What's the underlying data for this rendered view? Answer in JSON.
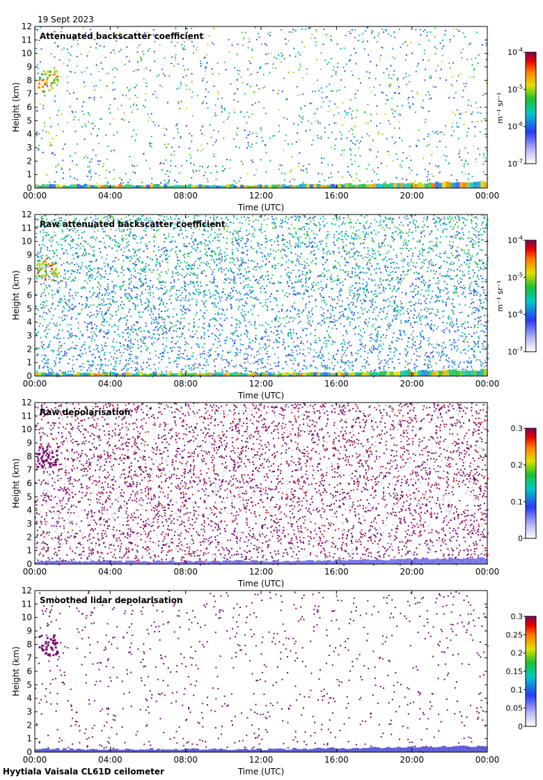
{
  "header": {
    "date": "19 Sept 2023"
  },
  "footer": {
    "site": "Hyytiala Vaisala CL61D ceilometer"
  },
  "chart_data": [
    {
      "type": "heatmap",
      "title": "Attenuated backscatter coefficient",
      "xlabel": "Time (UTC)",
      "ylabel": "Height (km)",
      "x_ticks": [
        "00:00",
        "04:00",
        "08:00",
        "12:00",
        "16:00",
        "20:00",
        "00:00"
      ],
      "y_ticks": [
        "0",
        "1",
        "2",
        "3",
        "4",
        "5",
        "6",
        "7",
        "8",
        "9",
        "10",
        "11",
        "12"
      ],
      "ylim": [
        0,
        12
      ],
      "colorbar": {
        "scale": "log",
        "range": [
          1e-07,
          0.0001
        ],
        "units": "m⁻¹ sr⁻¹",
        "tick_bases": [
          "10",
          "10",
          "10",
          "10"
        ],
        "tick_exponents": [
          "-4",
          "-5",
          "-6",
          "-7"
        ]
      },
      "background": "sparse"
    },
    {
      "type": "heatmap",
      "title": "Raw attenuated backscatter coefficient",
      "xlabel": "Time (UTC)",
      "ylabel": "Height (km)",
      "x_ticks": [
        "00:00",
        "04:00",
        "08:00",
        "12:00",
        "16:00",
        "20:00",
        "00:00"
      ],
      "y_ticks": [
        "0",
        "1",
        "2",
        "3",
        "4",
        "5",
        "6",
        "7",
        "8",
        "9",
        "10",
        "11",
        "12"
      ],
      "ylim": [
        0,
        12
      ],
      "colorbar": {
        "scale": "log",
        "range": [
          1e-07,
          0.0001
        ],
        "units": "m⁻¹ sr⁻¹",
        "tick_bases": [
          "10",
          "10",
          "10",
          "10"
        ],
        "tick_exponents": [
          "-4",
          "-5",
          "-6",
          "-7"
        ]
      },
      "background": "noisy-blue"
    },
    {
      "type": "heatmap",
      "title": "Raw depolarisation",
      "xlabel": "Time (UTC)",
      "ylabel": "Height (km)",
      "x_ticks": [
        "00:00",
        "04:00",
        "08:00",
        "12:00",
        "16:00",
        "20:00",
        "00:00"
      ],
      "y_ticks": [
        "0",
        "1",
        "2",
        "3",
        "4",
        "5",
        "6",
        "7",
        "8",
        "9",
        "10",
        "11",
        "12"
      ],
      "ylim": [
        0,
        12
      ],
      "colorbar": {
        "scale": "linear",
        "range": [
          0,
          0.3
        ],
        "ticks": [
          "0.3",
          "0.2",
          "0.1",
          "0"
        ]
      },
      "background": "noisy-purple"
    },
    {
      "type": "heatmap",
      "title": "Smoothed lidar depolarisation",
      "xlabel": "Time (UTC)",
      "ylabel": "Height (km)",
      "x_ticks": [
        "00:00",
        "04:00",
        "08:00",
        "12:00",
        "16:00",
        "20:00",
        "00:00"
      ],
      "y_ticks": [
        "0",
        "1",
        "2",
        "3",
        "4",
        "5",
        "6",
        "7",
        "8",
        "9",
        "10",
        "11",
        "12"
      ],
      "ylim": [
        0,
        12
      ],
      "colorbar": {
        "scale": "linear",
        "range": [
          0,
          0.3
        ],
        "ticks": [
          "0.3",
          "0.25",
          "0.2",
          "0.15",
          "0.1",
          "0.05",
          "0"
        ]
      },
      "background": "sparse-purple"
    }
  ]
}
